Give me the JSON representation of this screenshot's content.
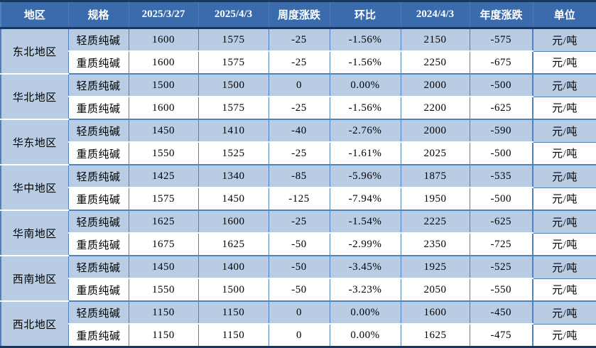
{
  "table": {
    "headers": [
      "地区",
      "规格",
      "2025/3/27",
      "2025/4/3",
      "周度涨跌",
      "环比",
      "2024/4/3",
      "年度涨跌",
      "单位"
    ],
    "groups": [
      {
        "region": "东北地区",
        "rows": [
          {
            "spec": "轻质纯碱",
            "prev": "1600",
            "curr": "1575",
            "weekly": "-25",
            "wow": "-1.56%",
            "yearAgo": "2150",
            "yearly": "-575",
            "unit": "元/吨"
          },
          {
            "spec": "重质纯碱",
            "prev": "1600",
            "curr": "1575",
            "weekly": "-25",
            "wow": "-1.56%",
            "yearAgo": "2250",
            "yearly": "-675",
            "unit": "元/吨"
          }
        ]
      },
      {
        "region": "华北地区",
        "rows": [
          {
            "spec": "轻质纯碱",
            "prev": "1500",
            "curr": "1500",
            "weekly": "0",
            "wow": "0.00%",
            "yearAgo": "2000",
            "yearly": "-500",
            "unit": "元/吨"
          },
          {
            "spec": "重质纯碱",
            "prev": "1600",
            "curr": "1575",
            "weekly": "-25",
            "wow": "-1.56%",
            "yearAgo": "2200",
            "yearly": "-625",
            "unit": "元/吨"
          }
        ]
      },
      {
        "region": "华东地区",
        "rows": [
          {
            "spec": "轻质纯碱",
            "prev": "1450",
            "curr": "1410",
            "weekly": "-40",
            "wow": "-2.76%",
            "yearAgo": "2000",
            "yearly": "-590",
            "unit": "元/吨"
          },
          {
            "spec": "重质纯碱",
            "prev": "1550",
            "curr": "1525",
            "weekly": "-25",
            "wow": "-1.61%",
            "yearAgo": "2025",
            "yearly": "-500",
            "unit": "元/吨"
          }
        ]
      },
      {
        "region": "华中地区",
        "rows": [
          {
            "spec": "轻质纯碱",
            "prev": "1425",
            "curr": "1340",
            "weekly": "-85",
            "wow": "-5.96%",
            "yearAgo": "1875",
            "yearly": "-535",
            "unit": "元/吨"
          },
          {
            "spec": "重质纯碱",
            "prev": "1575",
            "curr": "1450",
            "weekly": "-125",
            "wow": "-7.94%",
            "yearAgo": "1950",
            "yearly": "-500",
            "unit": "元/吨"
          }
        ]
      },
      {
        "region": "华南地区",
        "rows": [
          {
            "spec": "轻质纯碱",
            "prev": "1625",
            "curr": "1600",
            "weekly": "-25",
            "wow": "-1.54%",
            "yearAgo": "2225",
            "yearly": "-625",
            "unit": "元/吨"
          },
          {
            "spec": "重质纯碱",
            "prev": "1675",
            "curr": "1625",
            "weekly": "-50",
            "wow": "-2.99%",
            "yearAgo": "2350",
            "yearly": "-725",
            "unit": "元/吨"
          }
        ]
      },
      {
        "region": "西南地区",
        "rows": [
          {
            "spec": "轻质纯碱",
            "prev": "1450",
            "curr": "1400",
            "weekly": "-50",
            "wow": "-3.45%",
            "yearAgo": "1925",
            "yearly": "-525",
            "unit": "元/吨"
          },
          {
            "spec": "重质纯碱",
            "prev": "1550",
            "curr": "1500",
            "weekly": "-50",
            "wow": "-3.23%",
            "yearAgo": "2050",
            "yearly": "-550",
            "unit": "元/吨"
          }
        ]
      },
      {
        "region": "西北地区",
        "rows": [
          {
            "spec": "轻质纯碱",
            "prev": "1150",
            "curr": "1150",
            "weekly": "0",
            "wow": "0.00%",
            "yearAgo": "1600",
            "yearly": "-450",
            "unit": "元/吨"
          },
          {
            "spec": "重质纯碱",
            "prev": "1150",
            "curr": "1150",
            "weekly": "0",
            "wow": "0.00%",
            "yearAgo": "1625",
            "yearly": "-475",
            "unit": "元/吨"
          }
        ]
      }
    ]
  },
  "colors": {
    "header_bg": "#3a6cad",
    "header_text": "#ffffff",
    "row_light_bg": "#b8cce4",
    "row_white_bg": "#ffffff",
    "grid_blue": "#4f81bd",
    "outer_dark": "#17375e",
    "text": "#000000"
  }
}
